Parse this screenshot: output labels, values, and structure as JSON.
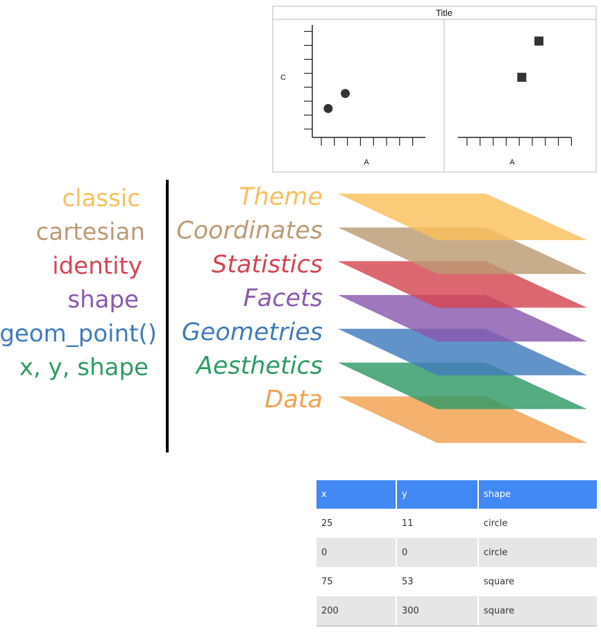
{
  "chart_data": {
    "type": "scatter",
    "title": "Title",
    "xlabel": "A",
    "ylabel": "C",
    "facets": [
      {
        "name": "",
        "shape": "circle",
        "points": [
          {
            "x": 25,
            "y": 11
          },
          {
            "x": 0,
            "y": 0
          }
        ],
        "xlim": [
          -10,
          140
        ],
        "ylim": [
          -15,
          60
        ]
      },
      {
        "name": "",
        "shape": "square",
        "points": [
          {
            "x": 75,
            "y": 53
          },
          {
            "x": 200,
            "y": 300
          }
        ],
        "xlim": [
          -375,
          425
        ],
        "ylim": [
          -300,
          400
        ]
      }
    ],
    "marker_color": "#333333"
  },
  "layers": [
    {
      "name": "Theme",
      "value": "classic",
      "color": "#f9bf5b"
    },
    {
      "name": "Coordinates",
      "value": "cartesian",
      "color": "#bc9b74"
    },
    {
      "name": "Statistics",
      "value": "identity",
      "color": "#d44550"
    },
    {
      "name": "Facets",
      "value": "shape",
      "color": "#8a59ae"
    },
    {
      "name": "Geometries",
      "value": "geom_point()",
      "color": "#3f7bbc"
    },
    {
      "name": "Aesthetics",
      "value": "x, y, shape",
      "color": "#2f9a66"
    },
    {
      "name": "Data",
      "value": "",
      "color": "#f3a04e"
    }
  ],
  "table": {
    "columns": [
      "x",
      "y",
      "shape"
    ],
    "rows": [
      [
        "25",
        "11",
        "circle"
      ],
      [
        "0",
        "0",
        "circle"
      ],
      [
        "75",
        "53",
        "square"
      ],
      [
        "200",
        "300",
        "square"
      ]
    ]
  }
}
